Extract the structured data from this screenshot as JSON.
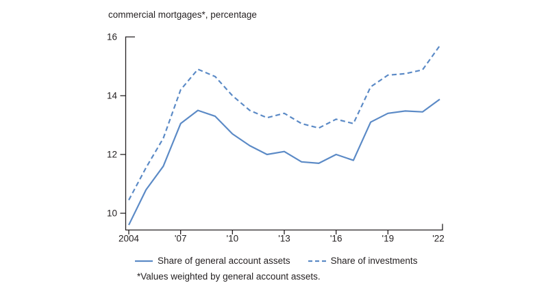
{
  "page": {
    "background": "#ffffff"
  },
  "chart_data": {
    "type": "line",
    "title": "commercial mortgages*, percentage",
    "footnote": "*Values weighted by general account assets.",
    "x": [
      2004,
      2005,
      2006,
      2007,
      2008,
      2009,
      2010,
      2011,
      2012,
      2013,
      2014,
      2015,
      2016,
      2017,
      2018,
      2019,
      2020,
      2021,
      2022
    ],
    "series": [
      {
        "name": "Share of general account assets",
        "line_style": "solid",
        "values": [
          9.6,
          10.8,
          11.6,
          13.05,
          13.5,
          13.3,
          12.7,
          12.3,
          12.0,
          12.1,
          11.75,
          11.7,
          12.0,
          11.8,
          13.1,
          13.4,
          13.48,
          13.45,
          13.88
        ]
      },
      {
        "name": "Share of investments",
        "line_style": "dashed",
        "values": [
          10.45,
          11.55,
          12.55,
          14.2,
          14.9,
          14.65,
          14.0,
          13.5,
          13.25,
          13.4,
          13.05,
          12.9,
          13.2,
          13.05,
          14.3,
          14.7,
          14.75,
          14.88,
          15.7
        ]
      }
    ],
    "ylim": [
      9.45,
      16
    ],
    "yticks": [
      10,
      12,
      14,
      16
    ],
    "xticks": {
      "years": [
        2004,
        2007,
        2010,
        2013,
        2016,
        2019,
        2022
      ],
      "labels": [
        "2004",
        "'07",
        "'10",
        "'13",
        "'16",
        "'19",
        "'22"
      ]
    },
    "legend_position": "bottom",
    "grid": false,
    "colors": {
      "line": "#5b8ac6",
      "text": "#231f20",
      "axis": "#231f20"
    }
  }
}
